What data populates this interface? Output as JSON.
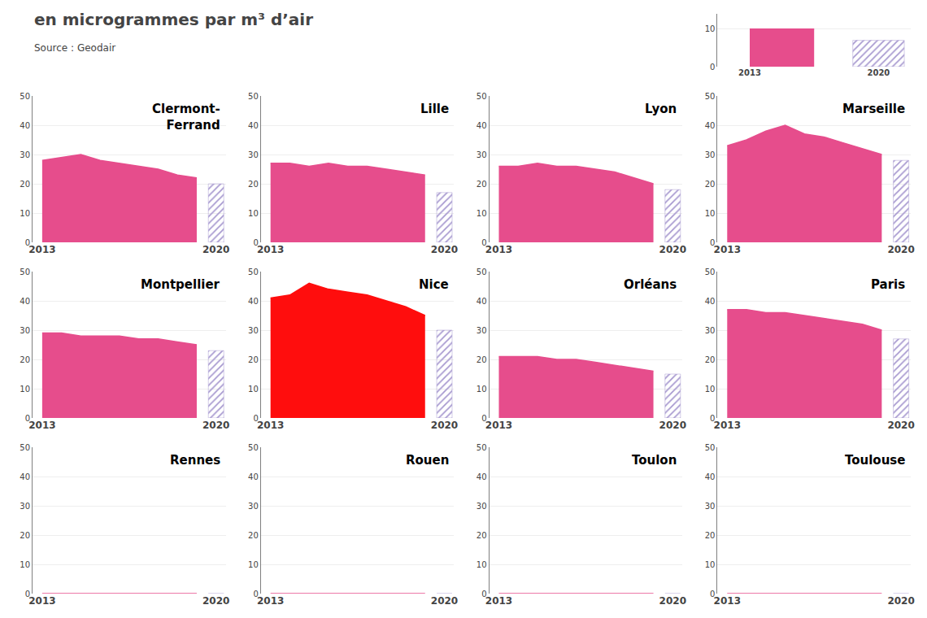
{
  "title": "en microgrammes par m³ d’air",
  "annotations": [
    "Source : Geodair"
  ],
  "chart_data": [
    {
      "type": "area",
      "categories": [
        "2013",
        null,
        "2020"
      ],
      "series": [
        {
          "type": "area",
          "color": "#e64d8c",
          "values": [
            10,
            10,
            null
          ]
        },
        {
          "type": "bar",
          "color": "#c8c4ee",
          "marker": "hatch",
          "values": [
            null,
            null,
            7
          ]
        }
      ],
      "ylim": [
        0,
        14
      ],
      "yticks": [
        0,
        10
      ],
      "grid": true
    },
    {
      "type": "area",
      "title": "Clermont-\nFerrand",
      "categories": [
        "2013",
        null,
        null,
        null,
        null,
        null,
        null,
        null,
        null,
        "2020"
      ],
      "series": [
        {
          "type": "area",
          "color": "#e64d8c",
          "values": [
            28,
            29,
            30,
            28,
            27,
            26,
            25,
            23,
            22,
            null
          ]
        },
        {
          "type": "bar",
          "color": "#c8c4ee",
          "marker": "hatch",
          "values": [
            null,
            null,
            null,
            null,
            null,
            null,
            null,
            null,
            null,
            20
          ]
        }
      ],
      "ylim": [
        0,
        50
      ],
      "yticks": [
        0,
        10,
        20,
        30,
        40,
        50
      ],
      "grid": true
    },
    {
      "type": "area",
      "title": "Lille",
      "categories": [
        "2013",
        null,
        null,
        null,
        null,
        null,
        null,
        null,
        null,
        "2020"
      ],
      "series": [
        {
          "type": "area",
          "color": "#e64d8c",
          "values": [
            27,
            27,
            26,
            27,
            26,
            26,
            25,
            24,
            23,
            null
          ]
        },
        {
          "type": "bar",
          "color": "#c8c4ee",
          "marker": "hatch",
          "values": [
            null,
            null,
            null,
            null,
            null,
            null,
            null,
            null,
            null,
            17
          ]
        }
      ],
      "ylim": [
        0,
        50
      ],
      "yticks": [
        0,
        10,
        20,
        30,
        40,
        50
      ],
      "grid": true
    },
    {
      "type": "area",
      "title": "Lyon",
      "categories": [
        "2013",
        null,
        null,
        null,
        null,
        null,
        null,
        null,
        null,
        "2020"
      ],
      "series": [
        {
          "type": "area",
          "color": "#e64d8c",
          "values": [
            26,
            26,
            27,
            26,
            26,
            25,
            24,
            22,
            20,
            null
          ]
        },
        {
          "type": "bar",
          "color": "#c8c4ee",
          "marker": "hatch",
          "values": [
            null,
            null,
            null,
            null,
            null,
            null,
            null,
            null,
            null,
            18
          ]
        }
      ],
      "ylim": [
        0,
        50
      ],
      "yticks": [
        0,
        10,
        20,
        30,
        40,
        50
      ],
      "grid": true
    },
    {
      "type": "area",
      "title": "Marseille",
      "categories": [
        "2013",
        null,
        null,
        null,
        null,
        null,
        null,
        null,
        null,
        "2020"
      ],
      "series": [
        {
          "type": "area",
          "color": "#e64d8c",
          "values": [
            33,
            35,
            38,
            40,
            37,
            36,
            34,
            32,
            30,
            null
          ]
        },
        {
          "type": "bar",
          "color": "#c8c4ee",
          "marker": "hatch",
          "values": [
            null,
            null,
            null,
            null,
            null,
            null,
            null,
            null,
            null,
            28
          ]
        }
      ],
      "ylim": [
        0,
        50
      ],
      "yticks": [
        0,
        10,
        20,
        30,
        40,
        50
      ],
      "grid": true
    },
    {
      "type": "area",
      "title": "Montpellier",
      "categories": [
        "2013",
        null,
        null,
        null,
        null,
        null,
        null,
        null,
        null,
        "2020"
      ],
      "series": [
        {
          "type": "area",
          "color": "#e64d8c",
          "values": [
            29,
            29,
            28,
            28,
            28,
            27,
            27,
            26,
            25,
            null
          ]
        },
        {
          "type": "bar",
          "color": "#c8c4ee",
          "marker": "hatch",
          "values": [
            null,
            null,
            null,
            null,
            null,
            null,
            null,
            null,
            null,
            23
          ]
        }
      ],
      "ylim": [
        0,
        50
      ],
      "yticks": [
        0,
        10,
        20,
        30,
        40,
        50
      ],
      "grid": true
    },
    {
      "type": "area",
      "title": "Nice",
      "categories": [
        "2013",
        null,
        null,
        null,
        null,
        null,
        null,
        null,
        null,
        "2020"
      ],
      "series": [
        {
          "type": "area",
          "color": "#ff0d0d",
          "values": [
            41,
            42,
            46,
            44,
            43,
            42,
            40,
            38,
            35,
            null
          ]
        },
        {
          "type": "bar",
          "color": "#c8c4ee",
          "marker": "hatch",
          "values": [
            null,
            null,
            null,
            null,
            null,
            null,
            null,
            null,
            null,
            30
          ]
        }
      ],
      "ylim": [
        0,
        50
      ],
      "yticks": [
        0,
        10,
        20,
        30,
        40,
        50
      ],
      "grid": true
    },
    {
      "type": "area",
      "title": "Orléans",
      "categories": [
        "2013",
        null,
        null,
        null,
        null,
        null,
        null,
        null,
        null,
        "2020"
      ],
      "series": [
        {
          "type": "area",
          "color": "#e64d8c",
          "values": [
            21,
            21,
            21,
            20,
            20,
            19,
            18,
            17,
            16,
            null
          ]
        },
        {
          "type": "bar",
          "color": "#c8c4ee",
          "marker": "hatch",
          "values": [
            null,
            null,
            null,
            null,
            null,
            null,
            null,
            null,
            null,
            15
          ]
        }
      ],
      "ylim": [
        0,
        50
      ],
      "yticks": [
        0,
        10,
        20,
        30,
        40,
        50
      ],
      "grid": true
    },
    {
      "type": "area",
      "title": "Paris",
      "categories": [
        "2013",
        null,
        null,
        null,
        null,
        null,
        null,
        null,
        null,
        "2020"
      ],
      "series": [
        {
          "type": "area",
          "color": "#e64d8c",
          "values": [
            37,
            37,
            36,
            36,
            35,
            34,
            33,
            32,
            30,
            null
          ]
        },
        {
          "type": "bar",
          "color": "#c8c4ee",
          "marker": "hatch",
          "values": [
            null,
            null,
            null,
            null,
            null,
            null,
            null,
            null,
            null,
            27
          ]
        }
      ],
      "ylim": [
        0,
        50
      ],
      "yticks": [
        0,
        10,
        20,
        30,
        40,
        50
      ],
      "grid": true
    },
    {
      "type": "area",
      "title": "Rennes",
      "categories": [
        "2013",
        null,
        null,
        null,
        null,
        null,
        null,
        null,
        null,
        "2020"
      ],
      "series": [
        {
          "type": "area",
          "color": "#e64d8c",
          "values": [
            0,
            0,
            0,
            0,
            0,
            0,
            0,
            0,
            0,
            null
          ]
        },
        {
          "type": "bar",
          "color": "#c8c4ee",
          "marker": "hatch",
          "values": [
            null,
            null,
            null,
            null,
            null,
            null,
            null,
            null,
            null,
            0
          ]
        }
      ],
      "ylim": [
        0,
        50
      ],
      "yticks": [
        0,
        10,
        20,
        30,
        40,
        50
      ],
      "grid": true
    },
    {
      "type": "area",
      "title": "Rouen",
      "categories": [
        "2013",
        null,
        null,
        null,
        null,
        null,
        null,
        null,
        null,
        "2020"
      ],
      "series": [
        {
          "type": "area",
          "color": "#e64d8c",
          "values": [
            0,
            0,
            0,
            0,
            0,
            0,
            0,
            0,
            0,
            null
          ]
        },
        {
          "type": "bar",
          "color": "#c8c4ee",
          "marker": "hatch",
          "values": [
            null,
            null,
            null,
            null,
            null,
            null,
            null,
            null,
            null,
            0
          ]
        }
      ],
      "ylim": [
        0,
        50
      ],
      "yticks": [
        0,
        10,
        20,
        30,
        40,
        50
      ],
      "grid": true
    },
    {
      "type": "area",
      "title": "Toulon",
      "categories": [
        "2013",
        null,
        null,
        null,
        null,
        null,
        null,
        null,
        null,
        "2020"
      ],
      "series": [
        {
          "type": "area",
          "color": "#e64d8c",
          "values": [
            0,
            0,
            0,
            0,
            0,
            0,
            0,
            0,
            0,
            null
          ]
        },
        {
          "type": "bar",
          "color": "#c8c4ee",
          "marker": "hatch",
          "values": [
            null,
            null,
            null,
            null,
            null,
            null,
            null,
            null,
            null,
            0
          ]
        }
      ],
      "ylim": [
        0,
        50
      ],
      "yticks": [
        0,
        10,
        20,
        30,
        40,
        50
      ],
      "grid": true
    },
    {
      "type": "area",
      "title": "Toulouse",
      "categories": [
        "2013",
        null,
        null,
        null,
        null,
        null,
        null,
        null,
        null,
        "2020"
      ],
      "series": [
        {
          "type": "area",
          "color": "#e64d8c",
          "values": [
            0,
            0,
            0,
            0,
            0,
            0,
            0,
            0,
            0,
            null
          ]
        },
        {
          "type": "bar",
          "color": "#c8c4ee",
          "marker": "hatch",
          "values": [
            null,
            null,
            null,
            null,
            null,
            null,
            null,
            null,
            null,
            0
          ]
        }
      ],
      "ylim": [
        0,
        50
      ],
      "yticks": [
        0,
        10,
        20,
        30,
        40,
        50
      ],
      "grid": true
    }
  ]
}
